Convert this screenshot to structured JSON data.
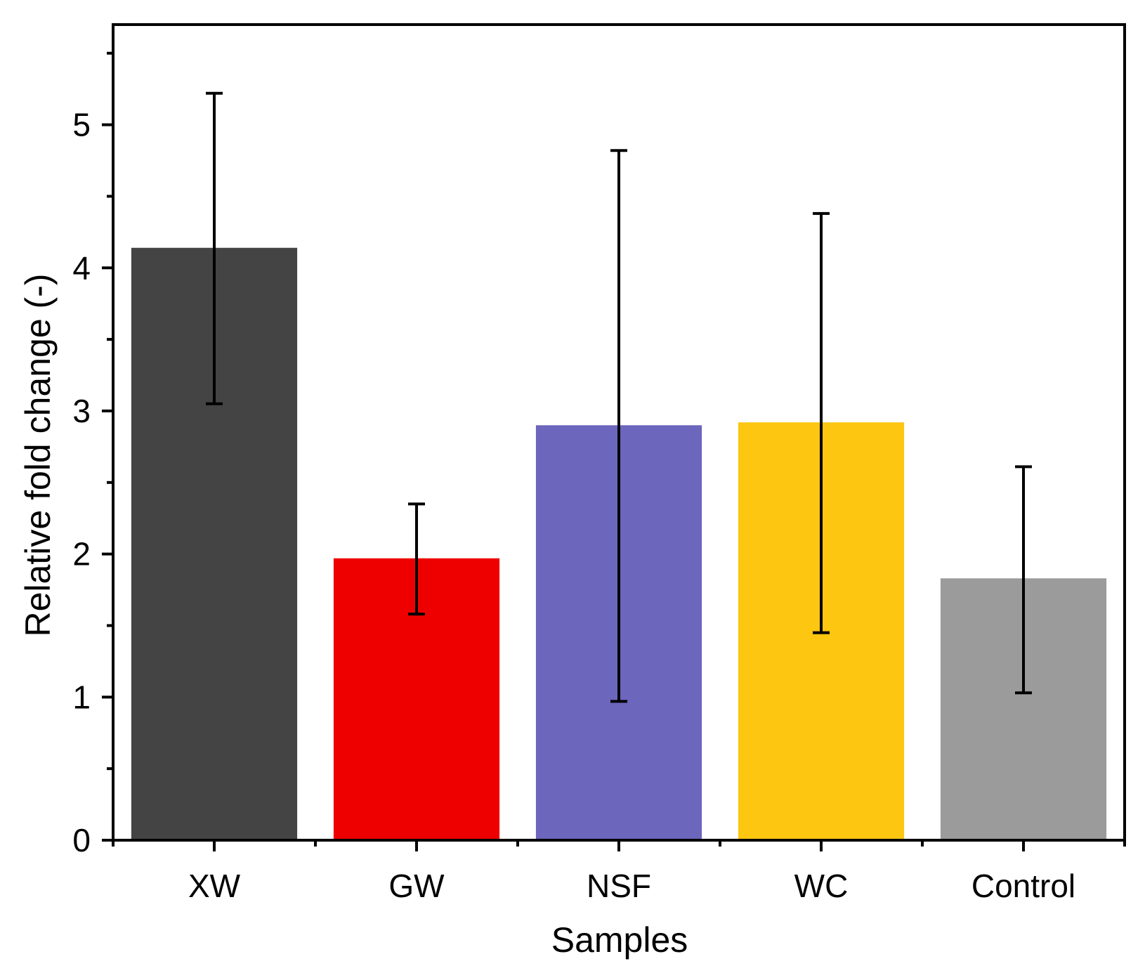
{
  "chart_data": {
    "type": "bar",
    "title": "",
    "xlabel": "Samples",
    "ylabel": "Relative fold change (-)",
    "categories": [
      "XW",
      "GW",
      "NSF",
      "WC",
      "Control"
    ],
    "values": [
      4.14,
      1.97,
      2.9,
      2.92,
      1.83
    ],
    "error_low": [
      3.05,
      1.58,
      0.97,
      1.45,
      1.03
    ],
    "error_high": [
      5.22,
      2.35,
      4.82,
      4.38,
      2.61
    ],
    "colors": [
      "#444444",
      "#ee0000",
      "#6c66bd",
      "#fcc611",
      "#9b9b9b"
    ],
    "ylim": [
      0,
      5.7
    ],
    "yticks": [
      0,
      1,
      2,
      3,
      4,
      5
    ],
    "yticks_minor": [
      0.5,
      1.5,
      2.5,
      3.5,
      4.5,
      5.5
    ],
    "grid": false,
    "legend": "none"
  }
}
